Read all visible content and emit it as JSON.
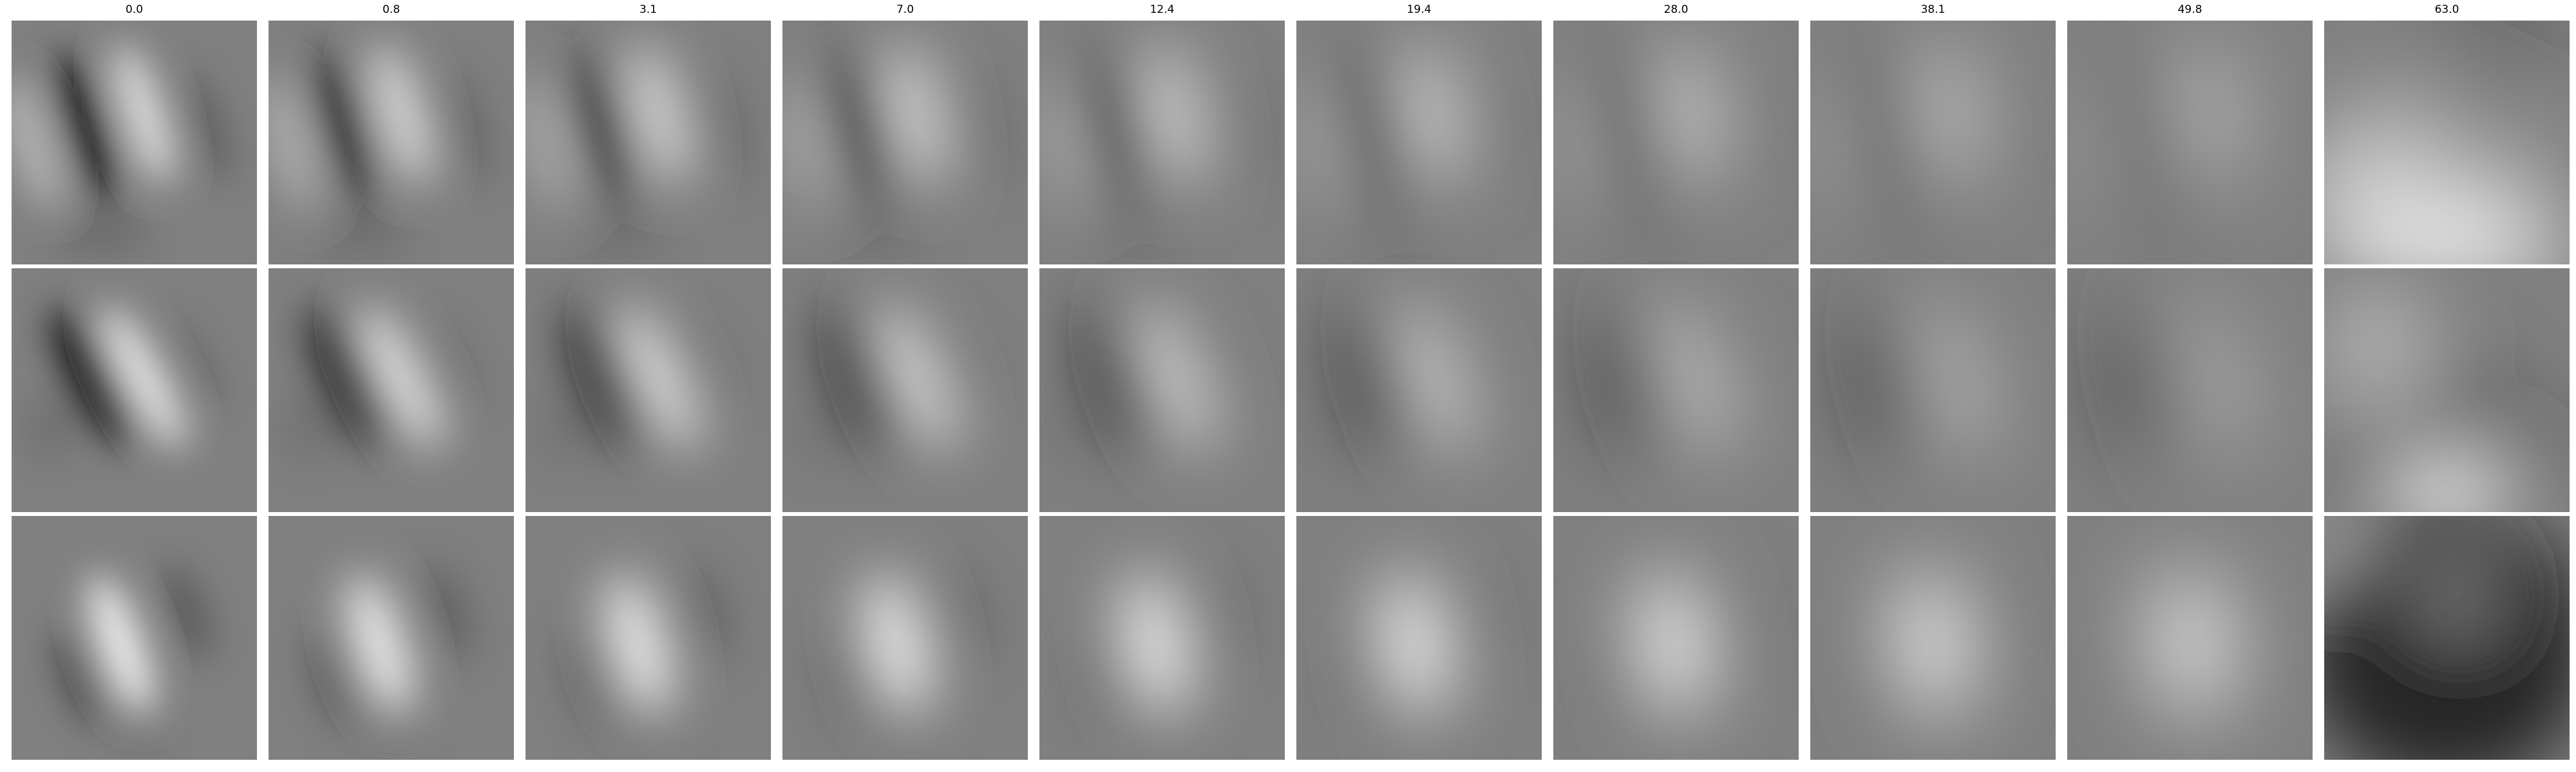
{
  "columns": [
    {
      "title": "0.0"
    },
    {
      "title": "0.8"
    },
    {
      "title": "3.1"
    },
    {
      "title": "7.0"
    },
    {
      "title": "12.4"
    },
    {
      "title": "19.4"
    },
    {
      "title": "28.0"
    },
    {
      "title": "38.1"
    },
    {
      "title": "49.8"
    },
    {
      "title": "63.0"
    }
  ],
  "rows": 3,
  "colors": {
    "background": "#ffffff",
    "panel_neutral": "#808080",
    "dark": "#000000",
    "light": "#ffffff"
  }
}
